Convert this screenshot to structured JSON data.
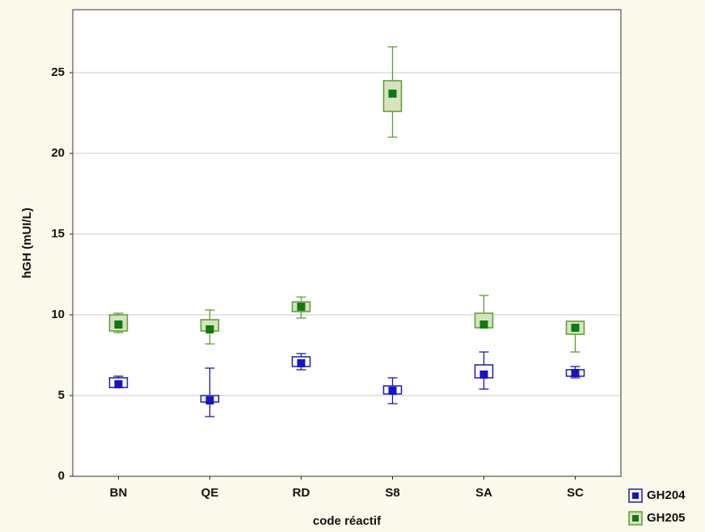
{
  "chart_data": {
    "type": "box",
    "y_label": "hGH (mUI/L)",
    "x_label": "code réactif",
    "categories": [
      "BN",
      "QE",
      "RD",
      "S8",
      "SA",
      "SC"
    ],
    "ylim": [
      0,
      28.9
    ],
    "yticks": [
      0,
      5,
      10,
      15,
      20,
      25
    ],
    "grid": true,
    "legend": "bottom-right",
    "series": [
      {
        "name": "GH204",
        "color": "#1a1aa8",
        "fill": "#ffffff",
        "point_color": "#1414c8",
        "min": [
          5.5,
          3.7,
          6.6,
          4.5,
          5.4,
          6.1
        ],
        "q1": [
          5.5,
          4.6,
          6.8,
          5.1,
          6.1,
          6.2
        ],
        "median": [
          5.7,
          4.7,
          7.0,
          5.3,
          6.3,
          6.4
        ],
        "q3": [
          6.1,
          5.0,
          7.4,
          5.6,
          6.9,
          6.6
        ],
        "max": [
          6.2,
          6.7,
          7.6,
          6.1,
          7.7,
          6.8
        ]
      },
      {
        "name": "GH205",
        "color": "#5f9a2e",
        "fill": "#d6e3bd",
        "point_color": "#0e7a12",
        "min": [
          8.9,
          8.2,
          9.8,
          21.0,
          9.2,
          7.7
        ],
        "q1": [
          9.0,
          9.0,
          10.2,
          22.6,
          9.2,
          8.8
        ],
        "median": [
          9.4,
          9.1,
          10.5,
          23.7,
          9.4,
          9.2
        ],
        "q3": [
          10.0,
          9.7,
          10.8,
          24.5,
          10.1,
          9.6
        ],
        "max": [
          10.1,
          10.3,
          11.1,
          26.6,
          11.2,
          9.6
        ]
      }
    ]
  }
}
